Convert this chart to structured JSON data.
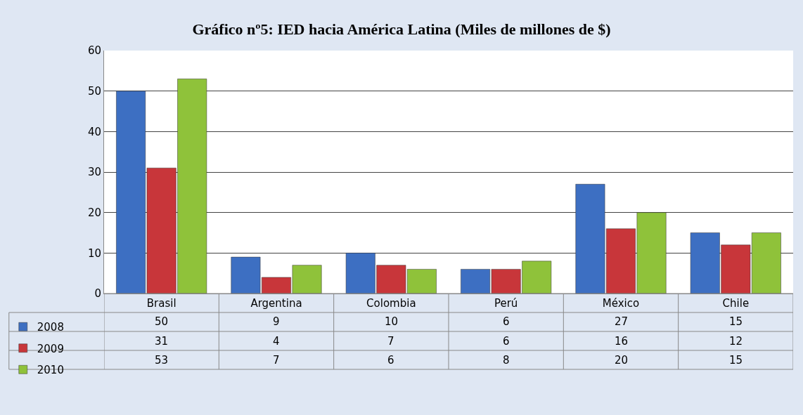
{
  "chart_data": {
    "type": "bar",
    "title": "Gráfico nº5: IED hacia América Latina (Miles de millones de $)",
    "categories": [
      "Brasil",
      "Argentina",
      "Colombia",
      "Perú",
      "México",
      "Chile"
    ],
    "series": [
      {
        "name": "2008",
        "color": "#3d6fc2",
        "values": [
          50,
          9,
          10,
          6,
          27,
          15
        ]
      },
      {
        "name": "2009",
        "color": "#c8363a",
        "values": [
          31,
          4,
          7,
          6,
          16,
          12
        ]
      },
      {
        "name": "2010",
        "color": "#8fc23a",
        "values": [
          53,
          7,
          6,
          8,
          20,
          15
        ]
      }
    ],
    "ylim": [
      0,
      60
    ],
    "yticks": [
      0,
      10,
      20,
      30,
      40,
      50,
      60
    ],
    "grid": "y",
    "legend": "bottom left",
    "data_labels": true
  }
}
